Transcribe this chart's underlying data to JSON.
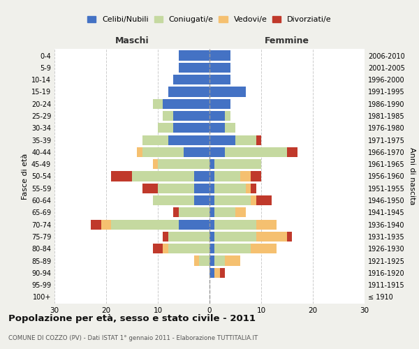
{
  "age_groups": [
    "100+",
    "95-99",
    "90-94",
    "85-89",
    "80-84",
    "75-79",
    "70-74",
    "65-69",
    "60-64",
    "55-59",
    "50-54",
    "45-49",
    "40-44",
    "35-39",
    "30-34",
    "25-29",
    "20-24",
    "15-19",
    "10-14",
    "5-9",
    "0-4"
  ],
  "birth_years": [
    "≤ 1910",
    "1911-1915",
    "1916-1920",
    "1921-1925",
    "1926-1930",
    "1931-1935",
    "1936-1940",
    "1941-1945",
    "1946-1950",
    "1951-1955",
    "1956-1960",
    "1961-1965",
    "1966-1970",
    "1971-1975",
    "1976-1980",
    "1981-1985",
    "1986-1990",
    "1991-1995",
    "1996-2000",
    "2001-2005",
    "2006-2010"
  ],
  "male": {
    "celibi": [
      0,
      0,
      0,
      0,
      0,
      0,
      6,
      0,
      3,
      3,
      3,
      0,
      5,
      8,
      7,
      7,
      9,
      8,
      7,
      6,
      6
    ],
    "coniugati": [
      0,
      0,
      0,
      2,
      8,
      8,
      13,
      6,
      8,
      7,
      12,
      10,
      8,
      5,
      3,
      2,
      2,
      0,
      0,
      0,
      0
    ],
    "vedovi": [
      0,
      0,
      0,
      1,
      1,
      0,
      2,
      0,
      0,
      0,
      0,
      1,
      1,
      0,
      0,
      0,
      0,
      0,
      0,
      0,
      0
    ],
    "divorziati": [
      0,
      0,
      0,
      0,
      2,
      1,
      2,
      1,
      0,
      3,
      4,
      0,
      0,
      0,
      0,
      0,
      0,
      0,
      0,
      0,
      0
    ]
  },
  "female": {
    "nubili": [
      0,
      0,
      1,
      1,
      1,
      1,
      1,
      1,
      1,
      1,
      1,
      1,
      3,
      5,
      3,
      3,
      4,
      7,
      4,
      4,
      4
    ],
    "coniugate": [
      0,
      0,
      0,
      2,
      7,
      8,
      8,
      4,
      7,
      6,
      5,
      9,
      12,
      4,
      2,
      1,
      0,
      0,
      0,
      0,
      0
    ],
    "vedove": [
      0,
      0,
      1,
      3,
      5,
      6,
      4,
      2,
      1,
      1,
      2,
      0,
      0,
      0,
      0,
      0,
      0,
      0,
      0,
      0,
      0
    ],
    "divorziate": [
      0,
      0,
      1,
      0,
      0,
      1,
      0,
      0,
      3,
      1,
      2,
      0,
      2,
      1,
      0,
      0,
      0,
      0,
      0,
      0,
      0
    ]
  },
  "colors": {
    "celibi": "#4472C4",
    "coniugati": "#C5D9A0",
    "vedovi": "#F5C070",
    "divorziati": "#C0392B"
  },
  "xlim": 30,
  "title_main": "Popolazione per età, sesso e stato civile - 2011",
  "title_sub": "COMUNE DI COZZO (PV) - Dati ISTAT 1° gennaio 2011 - Elaborazione TUTTITALIA.IT",
  "ylabel_left": "Fasce di età",
  "ylabel_right": "Anni di nascita",
  "legend_labels": [
    "Celibi/Nubili",
    "Coniugati/e",
    "Vedovi/e",
    "Divorziati/e"
  ],
  "bg_color": "#f0f0eb",
  "plot_bg_color": "#ffffff"
}
